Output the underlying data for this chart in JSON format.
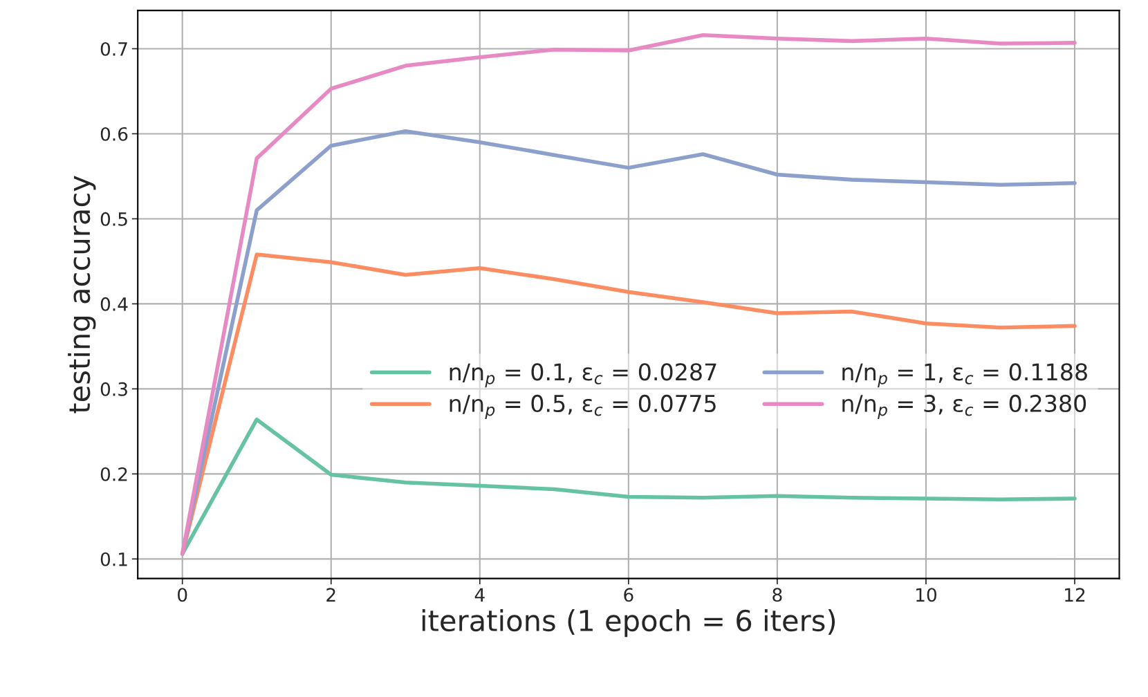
{
  "chart_data": {
    "type": "line",
    "xlabel": "iterations (1 epoch = 6 iters)",
    "ylabel": "testing accuracy",
    "x": [
      0,
      1,
      2,
      3,
      4,
      5,
      6,
      7,
      8,
      9,
      10,
      11,
      12
    ],
    "series": [
      {
        "name": "n/n$_{p}$ = 0.1, ε$_{c}$ = 0.0287",
        "color": "#66c2a5",
        "values": [
          0.106,
          0.264,
          0.199,
          0.19,
          0.186,
          0.182,
          0.173,
          0.172,
          0.174,
          0.172,
          0.171,
          0.17,
          0.171
        ]
      },
      {
        "name": "n/n$_{p}$ = 0.5, ε$_{c}$ = 0.0775",
        "color": "#fc8d62",
        "values": [
          0.106,
          0.458,
          0.449,
          0.434,
          0.442,
          0.429,
          0.414,
          0.402,
          0.389,
          0.391,
          0.377,
          0.372,
          0.374
        ]
      },
      {
        "name": "n/n$_{p}$ = 1, ε$_{c}$ = 0.1188",
        "color": "#8da0cb",
        "values": [
          0.106,
          0.51,
          0.586,
          0.603,
          0.59,
          0.575,
          0.56,
          0.576,
          0.552,
          0.546,
          0.543,
          0.54,
          0.542
        ]
      },
      {
        "name": "n/n$_{p}$ = 3, ε$_{c}$ = 0.2380",
        "color": "#e78ac3",
        "values": [
          0.106,
          0.571,
          0.653,
          0.68,
          0.69,
          0.699,
          0.698,
          0.716,
          0.712,
          0.709,
          0.712,
          0.706,
          0.707
        ]
      }
    ],
    "xlim": [
      -0.6,
      12.6
    ],
    "xticks": [
      0,
      2,
      4,
      6,
      8,
      10,
      12
    ],
    "ylim": [
      0.077,
      0.745
    ],
    "yticks": [
      0.1,
      0.2,
      0.3,
      0.4,
      0.5,
      0.6,
      0.7
    ],
    "grid": true,
    "legend": "right",
    "marker": "none",
    "line_style": "solid"
  }
}
